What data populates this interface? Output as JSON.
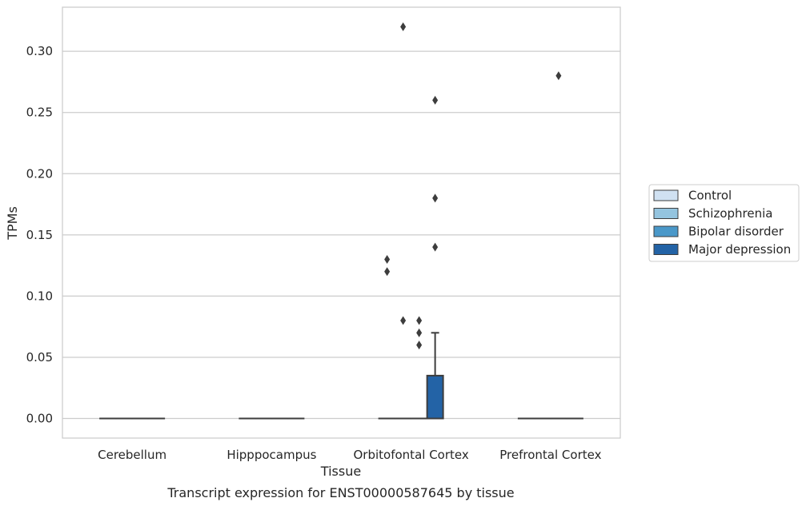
{
  "chart_data": {
    "type": "box",
    "title": "Transcript expression for ENST00000587645 by tissue",
    "xlabel": "Tissue",
    "ylabel": "TPMs",
    "ylim": [
      -0.016,
      0.336
    ],
    "yticks": [
      "0.00",
      "0.05",
      "0.10",
      "0.15",
      "0.20",
      "0.25",
      "0.30"
    ],
    "ytick_values": [
      0,
      0.05,
      0.1,
      0.15,
      0.2,
      0.25,
      0.3
    ],
    "categories": [
      "Cerebellum",
      "Hipppocampus",
      "Orbitofontal Cortex",
      "Prefrontal Cortex"
    ],
    "grid": "horizontal",
    "legend_position": "right",
    "series": [
      {
        "name": "Control",
        "color": "#d0e1f2",
        "boxes": [
          {
            "q1": 0,
            "median": 0,
            "q3": 0,
            "whisker_low": 0,
            "whisker_high": 0,
            "outliers": []
          },
          {
            "q1": 0,
            "median": 0,
            "q3": 0,
            "whisker_low": 0,
            "whisker_high": 0,
            "outliers": []
          },
          {
            "q1": 0,
            "median": 0,
            "q3": 0,
            "whisker_low": 0,
            "whisker_high": 0,
            "outliers": [
              0.13,
              0.12
            ]
          },
          {
            "q1": 0,
            "median": 0,
            "q3": 0,
            "whisker_low": 0,
            "whisker_high": 0,
            "outliers": []
          }
        ]
      },
      {
        "name": "Schizophrenia",
        "color": "#94c4df",
        "boxes": [
          {
            "q1": 0,
            "median": 0,
            "q3": 0,
            "whisker_low": 0,
            "whisker_high": 0,
            "outliers": []
          },
          {
            "q1": 0,
            "median": 0,
            "q3": 0,
            "whisker_low": 0,
            "whisker_high": 0,
            "outliers": []
          },
          {
            "q1": 0,
            "median": 0,
            "q3": 0,
            "whisker_low": 0,
            "whisker_high": 0,
            "outliers": [
              0.32,
              0.08
            ]
          },
          {
            "q1": 0,
            "median": 0,
            "q3": 0,
            "whisker_low": 0,
            "whisker_high": 0,
            "outliers": []
          }
        ]
      },
      {
        "name": "Bipolar disorder",
        "color": "#4a98c9",
        "boxes": [
          {
            "q1": 0,
            "median": 0,
            "q3": 0,
            "whisker_low": 0,
            "whisker_high": 0,
            "outliers": []
          },
          {
            "q1": 0,
            "median": 0,
            "q3": 0,
            "whisker_low": 0,
            "whisker_high": 0,
            "outliers": []
          },
          {
            "q1": 0,
            "median": 0,
            "q3": 0,
            "whisker_low": 0,
            "whisker_high": 0,
            "outliers": [
              0.08,
              0.07,
              0.06
            ]
          },
          {
            "q1": 0,
            "median": 0,
            "q3": 0,
            "whisker_low": 0,
            "whisker_high": 0,
            "outliers": [
              0.28
            ]
          }
        ]
      },
      {
        "name": "Major depression",
        "color": "#2363a6",
        "boxes": [
          {
            "q1": 0,
            "median": 0,
            "q3": 0,
            "whisker_low": 0,
            "whisker_high": 0,
            "outliers": []
          },
          {
            "q1": 0,
            "median": 0,
            "q3": 0,
            "whisker_low": 0,
            "whisker_high": 0,
            "outliers": []
          },
          {
            "q1": 0,
            "median": 0,
            "q3": 0.035,
            "whisker_low": 0,
            "whisker_high": 0.07,
            "outliers": [
              0.26,
              0.18,
              0.14
            ]
          },
          {
            "q1": 0,
            "median": 0,
            "q3": 0,
            "whisker_low": 0,
            "whisker_high": 0,
            "outliers": []
          }
        ]
      }
    ]
  }
}
